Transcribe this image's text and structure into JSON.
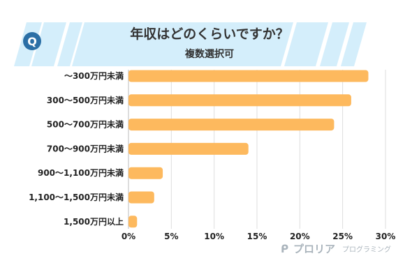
{
  "header": {
    "title": "年収はどのくらいですか？",
    "subtitle": "複数選択可",
    "badge": "Q"
  },
  "watermark": {
    "brand": "プロリア",
    "sub": "プログラミング"
  },
  "colors": {
    "bar": "#FDB95E",
    "banner": "#D4EEFB",
    "badge": "#2B6FA6",
    "grid": "#DDDDDD"
  },
  "chart_data": {
    "type": "bar",
    "orientation": "horizontal",
    "title": "年収はどのくらいですか？",
    "subtitle": "複数選択可",
    "categories": [
      "～300万円未満",
      "300～500万円未満",
      "500～700万円未満",
      "700～900万円未満",
      "900～1,100万円未満",
      "1,100～1,500万円未満",
      "1,500万円以上"
    ],
    "values": [
      28,
      26,
      24,
      14,
      4,
      3,
      1
    ],
    "xlim": [
      0,
      30
    ],
    "xticks": [
      "0%",
      "5%",
      "10%",
      "15%",
      "20%",
      "25%",
      "30%"
    ],
    "grid": true,
    "unit": "%"
  }
}
